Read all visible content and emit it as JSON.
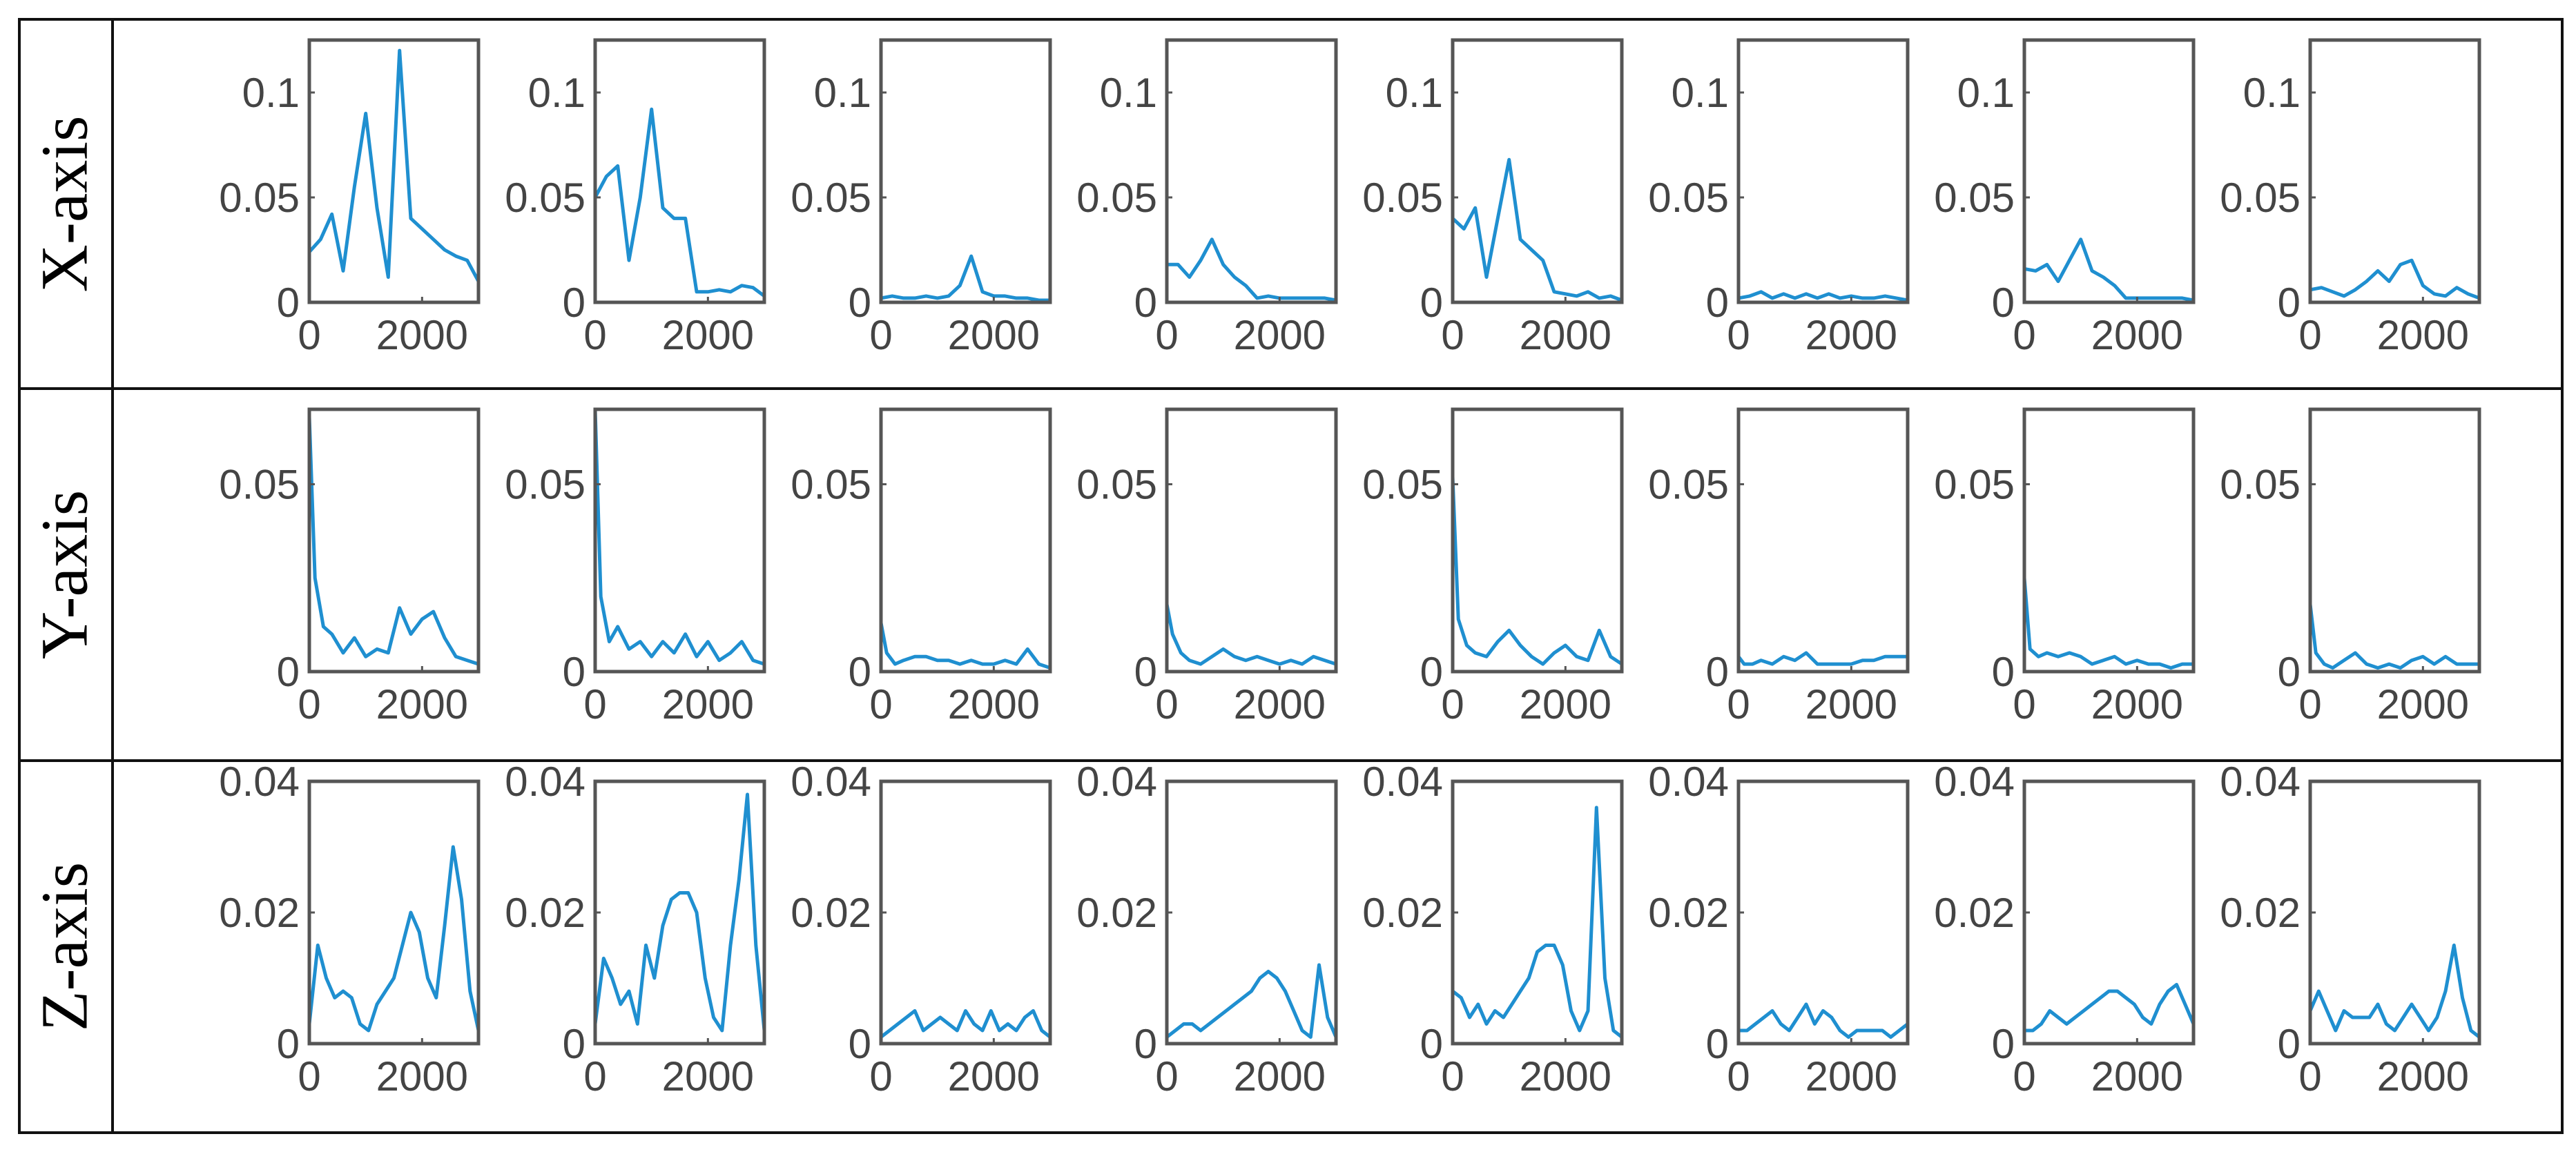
{
  "figure": {
    "rows": [
      {
        "label": "X-axis",
        "ylim": [
          0,
          0.125
        ],
        "yticks": [
          0,
          0.05,
          0.1
        ],
        "ytick_labels": [
          "0",
          "0.05",
          "0.1"
        ],
        "xticks": [
          0,
          2000
        ],
        "xtick_labels": [
          "0",
          "2000"
        ]
      },
      {
        "label": "Y-axis",
        "ylim": [
          0,
          0.07
        ],
        "yticks": [
          0,
          0.05
        ],
        "ytick_labels": [
          "0",
          "0.05"
        ],
        "xticks": [
          0,
          2000
        ],
        "xtick_labels": [
          "0",
          "2000"
        ]
      },
      {
        "label": "Z-axis",
        "ylim": [
          0,
          0.04
        ],
        "yticks": [
          0,
          0.02,
          0.04
        ],
        "ytick_labels": [
          "0",
          "0.02",
          "0.04"
        ],
        "xticks": [
          0,
          2000
        ],
        "xtick_labels": [
          "0",
          "2000"
        ]
      }
    ]
  },
  "chart_data": {
    "type": "line",
    "grid": false,
    "line_color": "#1f8fd0",
    "xlim": [
      0,
      3000
    ],
    "panels": [
      {
        "row": 0,
        "col": 0,
        "x": [
          0,
          200,
          400,
          600,
          800,
          1000,
          1200,
          1400,
          1600,
          1800,
          2000,
          2200,
          2400,
          2600,
          2800,
          3000
        ],
        "y": [
          0.024,
          0.03,
          0.042,
          0.015,
          0.055,
          0.09,
          0.045,
          0.012,
          0.12,
          0.04,
          0.035,
          0.03,
          0.025,
          0.022,
          0.02,
          0.01
        ]
      },
      {
        "row": 0,
        "col": 1,
        "x": [
          0,
          200,
          400,
          600,
          800,
          1000,
          1200,
          1400,
          1600,
          1800,
          2000,
          2200,
          2400,
          2600,
          2800,
          3000
        ],
        "y": [
          0.05,
          0.06,
          0.065,
          0.02,
          0.05,
          0.092,
          0.045,
          0.04,
          0.04,
          0.005,
          0.005,
          0.006,
          0.005,
          0.008,
          0.007,
          0.003
        ]
      },
      {
        "row": 0,
        "col": 2,
        "x": [
          0,
          200,
          400,
          600,
          800,
          1000,
          1200,
          1400,
          1600,
          1800,
          2000,
          2200,
          2400,
          2600,
          2800,
          3000
        ],
        "y": [
          0.002,
          0.003,
          0.002,
          0.002,
          0.003,
          0.002,
          0.003,
          0.008,
          0.022,
          0.005,
          0.003,
          0.003,
          0.002,
          0.002,
          0.001,
          0.001
        ]
      },
      {
        "row": 0,
        "col": 3,
        "x": [
          0,
          200,
          400,
          600,
          800,
          1000,
          1200,
          1400,
          1600,
          1800,
          2000,
          2200,
          2400,
          2600,
          2800,
          3000
        ],
        "y": [
          0.018,
          0.018,
          0.012,
          0.02,
          0.03,
          0.018,
          0.012,
          0.008,
          0.002,
          0.003,
          0.002,
          0.002,
          0.002,
          0.002,
          0.002,
          0.001
        ]
      },
      {
        "row": 0,
        "col": 4,
        "x": [
          0,
          200,
          400,
          600,
          800,
          1000,
          1200,
          1400,
          1600,
          1800,
          2000,
          2200,
          2400,
          2600,
          2800,
          3000
        ],
        "y": [
          0.04,
          0.035,
          0.045,
          0.012,
          0.04,
          0.068,
          0.03,
          0.025,
          0.02,
          0.005,
          0.004,
          0.003,
          0.005,
          0.002,
          0.003,
          0.001
        ]
      },
      {
        "row": 0,
        "col": 5,
        "x": [
          0,
          200,
          400,
          600,
          800,
          1000,
          1200,
          1400,
          1600,
          1800,
          2000,
          2200,
          2400,
          2600,
          2800,
          3000
        ],
        "y": [
          0.002,
          0.003,
          0.005,
          0.002,
          0.004,
          0.002,
          0.004,
          0.002,
          0.004,
          0.002,
          0.003,
          0.002,
          0.002,
          0.003,
          0.002,
          0.001
        ]
      },
      {
        "row": 0,
        "col": 6,
        "x": [
          0,
          200,
          400,
          600,
          800,
          1000,
          1200,
          1400,
          1600,
          1800,
          2000,
          2200,
          2400,
          2600,
          2800,
          3000
        ],
        "y": [
          0.016,
          0.015,
          0.018,
          0.01,
          0.02,
          0.03,
          0.015,
          0.012,
          0.008,
          0.002,
          0.002,
          0.002,
          0.002,
          0.002,
          0.002,
          0.001
        ]
      },
      {
        "row": 0,
        "col": 7,
        "x": [
          0,
          200,
          400,
          600,
          800,
          1000,
          1200,
          1400,
          1600,
          1800,
          2000,
          2200,
          2400,
          2600,
          2800,
          3000
        ],
        "y": [
          0.006,
          0.007,
          0.005,
          0.003,
          0.006,
          0.01,
          0.015,
          0.01,
          0.018,
          0.02,
          0.008,
          0.004,
          0.003,
          0.007,
          0.004,
          0.002
        ]
      },
      {
        "row": 1,
        "col": 0,
        "x": [
          0,
          100,
          250,
          400,
          600,
          800,
          1000,
          1200,
          1400,
          1600,
          1800,
          2000,
          2200,
          2400,
          2600,
          2800,
          3000
        ],
        "y": [
          0.068,
          0.025,
          0.012,
          0.01,
          0.005,
          0.009,
          0.004,
          0.006,
          0.005,
          0.017,
          0.01,
          0.014,
          0.016,
          0.009,
          0.004,
          0.003,
          0.002
        ]
      },
      {
        "row": 1,
        "col": 1,
        "x": [
          0,
          100,
          250,
          400,
          600,
          800,
          1000,
          1200,
          1400,
          1600,
          1800,
          2000,
          2200,
          2400,
          2600,
          2800,
          3000
        ],
        "y": [
          0.07,
          0.02,
          0.008,
          0.012,
          0.006,
          0.008,
          0.004,
          0.008,
          0.005,
          0.01,
          0.004,
          0.008,
          0.003,
          0.005,
          0.008,
          0.003,
          0.002
        ]
      },
      {
        "row": 1,
        "col": 2,
        "x": [
          0,
          100,
          250,
          400,
          600,
          800,
          1000,
          1200,
          1400,
          1600,
          1800,
          2000,
          2200,
          2400,
          2600,
          2800,
          3000
        ],
        "y": [
          0.013,
          0.005,
          0.002,
          0.003,
          0.004,
          0.004,
          0.003,
          0.003,
          0.002,
          0.003,
          0.002,
          0.002,
          0.003,
          0.002,
          0.006,
          0.002,
          0.001
        ]
      },
      {
        "row": 1,
        "col": 3,
        "x": [
          0,
          100,
          250,
          400,
          600,
          800,
          1000,
          1200,
          1400,
          1600,
          1800,
          2000,
          2200,
          2400,
          2600,
          2800,
          3000
        ],
        "y": [
          0.018,
          0.01,
          0.005,
          0.003,
          0.002,
          0.004,
          0.006,
          0.004,
          0.003,
          0.004,
          0.003,
          0.002,
          0.003,
          0.002,
          0.004,
          0.003,
          0.002
        ]
      },
      {
        "row": 1,
        "col": 4,
        "x": [
          0,
          100,
          250,
          400,
          600,
          800,
          1000,
          1200,
          1400,
          1600,
          1800,
          2000,
          2200,
          2400,
          2600,
          2800,
          3000
        ],
        "y": [
          0.052,
          0.014,
          0.007,
          0.005,
          0.004,
          0.008,
          0.011,
          0.007,
          0.004,
          0.002,
          0.005,
          0.007,
          0.004,
          0.003,
          0.011,
          0.004,
          0.002
        ]
      },
      {
        "row": 1,
        "col": 5,
        "x": [
          0,
          100,
          250,
          400,
          600,
          800,
          1000,
          1200,
          1400,
          1600,
          1800,
          2000,
          2200,
          2400,
          2600,
          2800,
          3000
        ],
        "y": [
          0.004,
          0.002,
          0.002,
          0.003,
          0.002,
          0.004,
          0.003,
          0.005,
          0.002,
          0.002,
          0.002,
          0.002,
          0.003,
          0.003,
          0.004,
          0.004,
          0.004
        ]
      },
      {
        "row": 1,
        "col": 6,
        "x": [
          0,
          100,
          250,
          400,
          600,
          800,
          1000,
          1200,
          1400,
          1600,
          1800,
          2000,
          2200,
          2400,
          2600,
          2800,
          3000
        ],
        "y": [
          0.025,
          0.006,
          0.004,
          0.005,
          0.004,
          0.005,
          0.004,
          0.002,
          0.003,
          0.004,
          0.002,
          0.003,
          0.002,
          0.002,
          0.001,
          0.002,
          0.002
        ]
      },
      {
        "row": 1,
        "col": 7,
        "x": [
          0,
          100,
          250,
          400,
          600,
          800,
          1000,
          1200,
          1400,
          1600,
          1800,
          2000,
          2200,
          2400,
          2600,
          2800,
          3000
        ],
        "y": [
          0.018,
          0.005,
          0.002,
          0.001,
          0.003,
          0.005,
          0.002,
          0.001,
          0.002,
          0.001,
          0.003,
          0.004,
          0.002,
          0.004,
          0.002,
          0.002,
          0.002
        ]
      },
      {
        "row": 2,
        "col": 0,
        "x": [
          0,
          150,
          300,
          450,
          600,
          750,
          900,
          1050,
          1200,
          1350,
          1500,
          1650,
          1800,
          1950,
          2100,
          2250,
          2400,
          2550,
          2700,
          2850,
          3000
        ],
        "y": [
          0.003,
          0.015,
          0.01,
          0.007,
          0.008,
          0.007,
          0.003,
          0.002,
          0.006,
          0.008,
          0.01,
          0.015,
          0.02,
          0.017,
          0.01,
          0.007,
          0.018,
          0.03,
          0.022,
          0.008,
          0.002
        ]
      },
      {
        "row": 2,
        "col": 1,
        "x": [
          0,
          150,
          300,
          450,
          600,
          750,
          900,
          1050,
          1200,
          1350,
          1500,
          1650,
          1800,
          1950,
          2100,
          2250,
          2400,
          2550,
          2700,
          2850,
          3000
        ],
        "y": [
          0.003,
          0.013,
          0.01,
          0.006,
          0.008,
          0.003,
          0.015,
          0.01,
          0.018,
          0.022,
          0.023,
          0.023,
          0.02,
          0.01,
          0.004,
          0.002,
          0.015,
          0.025,
          0.038,
          0.015,
          0.002
        ]
      },
      {
        "row": 2,
        "col": 2,
        "x": [
          0,
          150,
          300,
          450,
          600,
          750,
          900,
          1050,
          1200,
          1350,
          1500,
          1650,
          1800,
          1950,
          2100,
          2250,
          2400,
          2550,
          2700,
          2850,
          3000
        ],
        "y": [
          0.001,
          0.002,
          0.003,
          0.004,
          0.005,
          0.002,
          0.003,
          0.004,
          0.003,
          0.002,
          0.005,
          0.003,
          0.002,
          0.005,
          0.002,
          0.003,
          0.002,
          0.004,
          0.005,
          0.002,
          0.001
        ]
      },
      {
        "row": 2,
        "col": 3,
        "x": [
          0,
          150,
          300,
          450,
          600,
          750,
          900,
          1050,
          1200,
          1350,
          1500,
          1650,
          1800,
          1950,
          2100,
          2250,
          2400,
          2550,
          2700,
          2850,
          3000
        ],
        "y": [
          0.001,
          0.002,
          0.003,
          0.003,
          0.002,
          0.003,
          0.004,
          0.005,
          0.006,
          0.007,
          0.008,
          0.01,
          0.011,
          0.01,
          0.008,
          0.005,
          0.002,
          0.001,
          0.012,
          0.004,
          0.001
        ]
      },
      {
        "row": 2,
        "col": 4,
        "x": [
          0,
          150,
          300,
          450,
          600,
          750,
          900,
          1050,
          1200,
          1350,
          1500,
          1650,
          1800,
          1950,
          2100,
          2250,
          2400,
          2550,
          2700,
          2850,
          3000
        ],
        "y": [
          0.008,
          0.007,
          0.004,
          0.006,
          0.003,
          0.005,
          0.004,
          0.006,
          0.008,
          0.01,
          0.014,
          0.015,
          0.015,
          0.012,
          0.005,
          0.002,
          0.005,
          0.036,
          0.01,
          0.002,
          0.001
        ]
      },
      {
        "row": 2,
        "col": 5,
        "x": [
          0,
          150,
          300,
          450,
          600,
          750,
          900,
          1050,
          1200,
          1350,
          1500,
          1650,
          1800,
          1950,
          2100,
          2250,
          2400,
          2550,
          2700,
          2850,
          3000
        ],
        "y": [
          0.002,
          0.002,
          0.003,
          0.004,
          0.005,
          0.003,
          0.002,
          0.004,
          0.006,
          0.003,
          0.005,
          0.004,
          0.002,
          0.001,
          0.002,
          0.002,
          0.002,
          0.002,
          0.001,
          0.002,
          0.003
        ]
      },
      {
        "row": 2,
        "col": 6,
        "x": [
          0,
          150,
          300,
          450,
          600,
          750,
          900,
          1050,
          1200,
          1350,
          1500,
          1650,
          1800,
          1950,
          2100,
          2250,
          2400,
          2550,
          2700,
          2850,
          3000
        ],
        "y": [
          0.002,
          0.002,
          0.003,
          0.005,
          0.004,
          0.003,
          0.004,
          0.005,
          0.006,
          0.007,
          0.008,
          0.008,
          0.007,
          0.006,
          0.004,
          0.003,
          0.006,
          0.008,
          0.009,
          0.006,
          0.003
        ]
      },
      {
        "row": 2,
        "col": 7,
        "x": [
          0,
          150,
          300,
          450,
          600,
          750,
          900,
          1050,
          1200,
          1350,
          1500,
          1650,
          1800,
          1950,
          2100,
          2250,
          2400,
          2550,
          2700,
          2850,
          3000
        ],
        "y": [
          0.005,
          0.008,
          0.005,
          0.002,
          0.005,
          0.004,
          0.004,
          0.004,
          0.006,
          0.003,
          0.002,
          0.004,
          0.006,
          0.004,
          0.002,
          0.004,
          0.008,
          0.015,
          0.007,
          0.002,
          0.001
        ]
      }
    ]
  }
}
